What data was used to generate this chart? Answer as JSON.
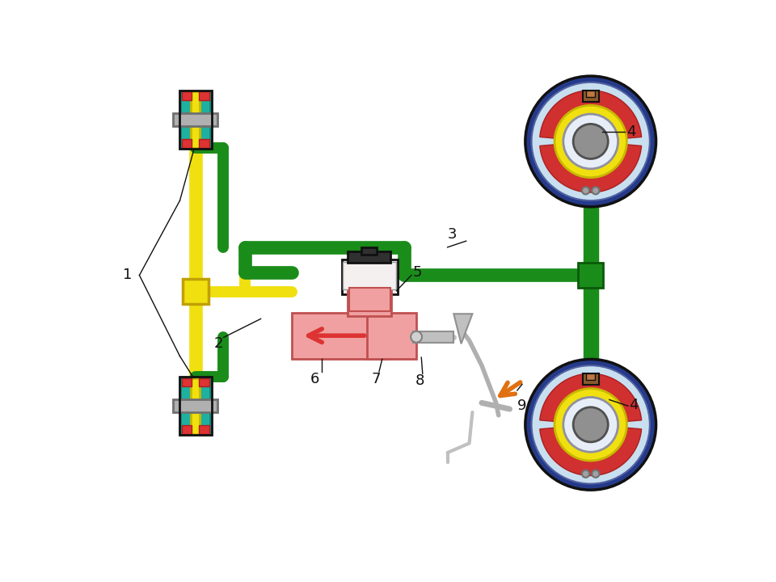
{
  "bg": "#ffffff",
  "yellow": "#f0e010",
  "yellow_dk": "#c8b800",
  "green": "#1a8c1a",
  "green_dk": "#0a5a0a",
  "black": "#111111",
  "teal": "#20b0a0",
  "teal_dk": "#108878",
  "red": "#dd3333",
  "pink": "#f0a0a0",
  "orange": "#e07010",
  "blue_dk": "#253a8a",
  "light_blue": "#c8dff0",
  "grey": "#b0b0b0",
  "grey_dk": "#707070",
  "white_hub": "#e8eef8",
  "dark_teal": "#1a9090",
  "yellow_green": "#d0d020"
}
